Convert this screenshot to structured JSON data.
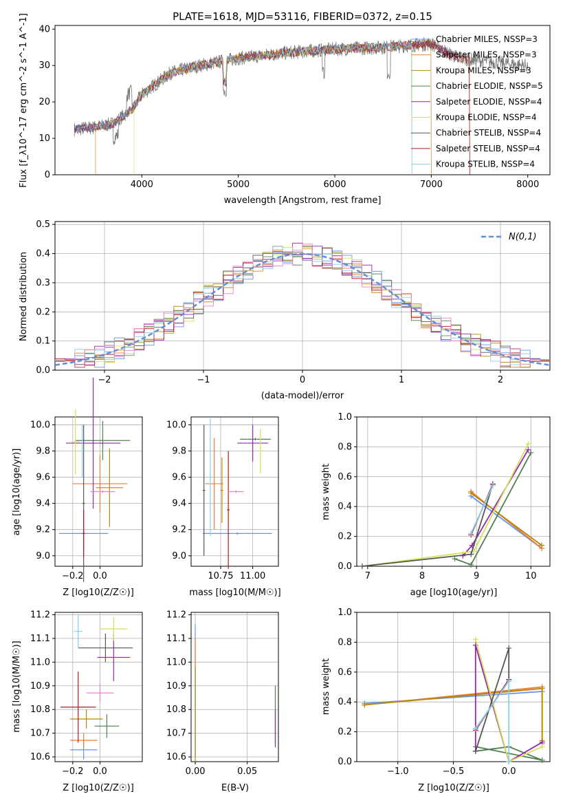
{
  "colors": {
    "series": [
      "#6495ed",
      "#ed7d31",
      "#b8860b",
      "#4f7f4f",
      "#9426b4",
      "#d4e157",
      "#555555",
      "#b2182b",
      "#87ceeb",
      "#ee82c9"
    ],
    "model_gaussian": "#5f8fd8",
    "grid": "#b0b0b0"
  },
  "legend_labels": [
    "Chabrier MILES, N_SSP=3",
    "Salpeter MILES, N_SSP=3",
    "Kroupa MILES, N_SSP=3",
    "Chabrier ELODIE, N_SSP=5",
    "Salpeter ELODIE, N_SSP=4",
    "Kroupa ELODIE, N_SSP=4",
    "Chabrier STELIB, N_SSP=4",
    "Salpeter STELIB, N_SSP=4",
    "Kroupa STELIB, N_SSP=4"
  ],
  "chart_data": [
    {
      "id": "spectrum",
      "type": "line",
      "title": "PLATE=1618, MJD=53116, FIBERID=0372, z=0.15",
      "xlabel": "wavelength [Angstrom, rest frame]",
      "ylabel": "Flux [f_λ10^-17 erg cm^-2 s^-1 A^-1]",
      "xlim": [
        3100,
        8230
      ],
      "ylim": [
        0,
        41
      ],
      "xticks": [
        4000,
        5000,
        6000,
        7000,
        8000
      ],
      "yticks": [
        0,
        10,
        20,
        30,
        40
      ],
      "grid": false,
      "legend": "top-right",
      "continuum_x": [
        3300,
        3500,
        3700,
        3900,
        4000,
        4300,
        4600,
        5000,
        5500,
        6000,
        6500,
        7000,
        7200,
        7300
      ],
      "continuum_y": [
        12.5,
        13,
        14,
        18,
        22,
        28,
        30,
        32,
        33.5,
        34.5,
        35,
        36,
        33,
        32
      ]
    },
    {
      "id": "residuals",
      "type": "step",
      "xlabel": "(data-model)/error",
      "ylabel": "Normed distribution",
      "xlim": [
        -2.5,
        2.5
      ],
      "ylim": [
        0,
        0.51
      ],
      "xticks": [
        -2,
        -1,
        0,
        1,
        2
      ],
      "yticks": [
        0.0,
        0.1,
        0.2,
        0.3,
        0.4,
        0.5
      ],
      "grid": true,
      "legend": "top-right",
      "model_label": "N(0,1)"
    },
    {
      "id": "age-vs-Z",
      "type": "errorbar",
      "xlabel": "Z [log10(Z/Z☉)]",
      "ylabel": "age [log10(age/yr)]",
      "xlim": [
        -0.33,
        0.31
      ],
      "ylim": [
        8.92,
        10.06
      ],
      "xticks": [
        -0.2,
        0.0
      ],
      "yticks": [
        9.0,
        9.2,
        9.4,
        9.6,
        9.8,
        10.0
      ],
      "grid": true,
      "points": [
        {
          "x": -0.12,
          "y": 9.17,
          "xerr": 0.18,
          "yerr": 0.06
        },
        {
          "x": 0.0,
          "y": 9.55,
          "xerr": 0.2,
          "yerr": 0.22
        },
        {
          "x": 0.07,
          "y": 9.52,
          "xerr": 0.1,
          "yerr": 0.3
        },
        {
          "x": 0.02,
          "y": 9.88,
          "xerr": 0.2,
          "yerr": 0.15
        },
        {
          "x": -0.05,
          "y": 9.86,
          "xerr": 0.2,
          "yerr": 0.5
        },
        {
          "x": -0.18,
          "y": 9.87,
          "xerr": 0.03,
          "yerr": 0.25
        },
        {
          "x": -0.12,
          "y": 9.4,
          "xerr": 0.01,
          "yerr": 0.6
        },
        {
          "x": -0.12,
          "y": 9.17,
          "xerr": 0.01,
          "yerr": 0.18
        },
        {
          "x": -0.13,
          "y": 9.8,
          "xerr": 0.01,
          "yerr": 0.2
        },
        {
          "x": 0.02,
          "y": 9.49,
          "xerr": 0.09,
          "yerr": 0.01
        }
      ]
    },
    {
      "id": "age-vs-mass",
      "type": "errorbar",
      "xlabel": "mass [log10(M/M☉)]",
      "ylabel": "",
      "xlim": [
        10.52,
        11.2
      ],
      "ylim": [
        8.92,
        10.06
      ],
      "xticks": [
        10.75,
        11.0
      ],
      "yticks": [
        9.0,
        9.2,
        9.4,
        9.6,
        9.8,
        10.0
      ],
      "grid": true,
      "points": [
        {
          "x": 10.88,
          "y": 9.17,
          "xerr": 0.27,
          "yerr": 0.01
        },
        {
          "x": 10.7,
          "y": 9.55,
          "xerr": 0.07,
          "yerr": 0.35
        },
        {
          "x": 10.76,
          "y": 9.5,
          "xerr": 0.01,
          "yerr": 0.25
        },
        {
          "x": 11.02,
          "y": 9.89,
          "xerr": 0.12,
          "yerr": 0.01
        },
        {
          "x": 11.0,
          "y": 9.86,
          "xerr": 0.12,
          "yerr": 0.14
        },
        {
          "x": 11.06,
          "y": 9.8,
          "xerr": 0.01,
          "yerr": 0.17
        },
        {
          "x": 10.62,
          "y": 9.5,
          "xerr": 0.01,
          "yerr": 0.5
        },
        {
          "x": 10.81,
          "y": 9.35,
          "xerr": 0.01,
          "yerr": 0.45
        },
        {
          "x": 10.67,
          "y": 9.6,
          "xerr": 0.01,
          "yerr": 0.45
        },
        {
          "x": 10.87,
          "y": 9.49,
          "xerr": 0.06,
          "yerr": 0.01
        }
      ]
    },
    {
      "id": "weight-vs-age",
      "type": "line",
      "xlabel": "age [log10(age/yr)]",
      "ylabel": "mass weight",
      "xlim": [
        6.8,
        10.35
      ],
      "ylim": [
        0,
        1.0
      ],
      "xticks": [
        7,
        8,
        9,
        10
      ],
      "yticks": [
        0.0,
        0.2,
        0.4,
        0.6,
        0.8,
        1.0
      ],
      "grid": true,
      "series": [
        {
          "x": [
            8.9,
            10.2
          ],
          "y": [
            0.47,
            0.12
          ]
        },
        {
          "x": [
            8.9,
            10.2
          ],
          "y": [
            0.5,
            0.12
          ]
        },
        {
          "x": [
            8.9,
            10.2
          ],
          "y": [
            0.49,
            0.14
          ]
        },
        {
          "x": [
            8.6,
            8.9,
            10.0
          ],
          "y": [
            0.05,
            0.01,
            0.76
          ]
        },
        {
          "x": [
            8.75,
            8.92,
            9.95
          ],
          "y": [
            0.07,
            0.14,
            0.78
          ]
        },
        {
          "x": [
            6.9,
            8.95,
            9.95
          ],
          "y": [
            0.0,
            0.1,
            0.82
          ]
        },
        {
          "x": [
            6.9,
            8.9,
            9.3
          ],
          "y": [
            0.0,
            0.08,
            0.55
          ]
        },
        {
          "x": [
            8.9,
            9.3
          ],
          "y": [
            0.21,
            0.55
          ]
        },
        {
          "x": [
            8.9,
            9.3
          ],
          "y": [
            0.22,
            0.54
          ]
        }
      ]
    },
    {
      "id": "mass-vs-Z",
      "type": "errorbar",
      "xlabel": "Z [log10(Z/Z☉)]",
      "ylabel": "mass [log10(M/M☉)]",
      "xlim": [
        -0.33,
        0.31
      ],
      "ylim": [
        10.58,
        11.21
      ],
      "xticks": [
        -0.2,
        0.0
      ],
      "yticks": [
        10.6,
        10.7,
        10.8,
        10.9,
        11.0,
        11.1,
        11.2
      ],
      "grid": true,
      "points": [
        {
          "x": -0.12,
          "y": 10.63,
          "xerr": 0.1,
          "yerr": 0.04
        },
        {
          "x": -0.12,
          "y": 10.67,
          "xerr": 0.1,
          "yerr": 0.03
        },
        {
          "x": -0.1,
          "y": 10.76,
          "xerr": 0.12,
          "yerr": 0.04
        },
        {
          "x": 0.05,
          "y": 10.73,
          "xerr": 0.09,
          "yerr": 0.05
        },
        {
          "x": 0.1,
          "y": 11.02,
          "xerr": 0.12,
          "yerr": 0.1
        },
        {
          "x": 0.1,
          "y": 11.14,
          "xerr": 0.1,
          "yerr": 0.05
        },
        {
          "x": 0.04,
          "y": 11.06,
          "xerr": 0.2,
          "yerr": 0.06
        },
        {
          "x": -0.16,
          "y": 10.81,
          "xerr": 0.13,
          "yerr": 0.15
        },
        {
          "x": -0.16,
          "y": 11.13,
          "xerr": 0.03,
          "yerr": 0.07
        },
        {
          "x": 0.0,
          "y": 10.87,
          "xerr": 0.1,
          "yerr": 0.04
        }
      ]
    },
    {
      "id": "mass-vs-EBV",
      "type": "errorbar",
      "xlabel": "E(B-V)",
      "ylabel": "",
      "xlim": [
        -0.004,
        0.08
      ],
      "ylim": [
        10.58,
        11.21
      ],
      "xticks": [
        0.0,
        0.05
      ],
      "yticks": [
        10.6,
        10.7,
        10.8,
        10.9,
        11.0,
        11.1,
        11.2
      ],
      "grid": true,
      "points": [
        {
          "x": 0.0,
          "y": 10.88,
          "xerr": 0.0,
          "yerr": 0.28
        },
        {
          "x": 0.0,
          "y": 10.85,
          "xerr": 0.0,
          "yerr": 0.25
        },
        {
          "x": 0.0,
          "y": 10.78,
          "xerr": 0.0,
          "yerr": 0.2
        },
        {
          "x": 0.077,
          "y": 10.78,
          "xerr": 0.0,
          "yerr": 0.12
        },
        {
          "x": 0.077,
          "y": 10.72,
          "xerr": 0.0,
          "yerr": 0.08
        }
      ]
    },
    {
      "id": "weight-vs-Z",
      "type": "line",
      "xlabel": "Z [log10(Z/Z☉)]",
      "ylabel": "mass weight",
      "xlim": [
        -1.37,
        0.37
      ],
      "ylim": [
        0,
        1.0
      ],
      "xticks": [
        -1.0,
        -0.5,
        0.0
      ],
      "yticks": [
        0.0,
        0.2,
        0.4,
        0.6,
        0.8,
        1.0
      ],
      "grid": true,
      "series": [
        {
          "x": [
            -1.3,
            0.3
          ],
          "y": [
            0.39,
            0.47
          ]
        },
        {
          "x": [
            -1.3,
            0.3,
            0.3
          ],
          "y": [
            0.38,
            0.5,
            0.12
          ]
        },
        {
          "x": [
            -1.3,
            0.3,
            0.3
          ],
          "y": [
            0.38,
            0.49,
            0.14
          ]
        },
        {
          "x": [
            -0.3,
            0.0,
            0.3,
            -0.3
          ],
          "y": [
            0.07,
            0.1,
            0.01,
            0.1
          ]
        },
        {
          "x": [
            -0.3,
            -0.3,
            0.0,
            0.3
          ],
          "y": [
            0.07,
            0.78,
            0.0,
            0.13
          ]
        },
        {
          "x": [
            -0.3,
            0.0,
            0.3
          ],
          "y": [
            0.82,
            0.0,
            0.1
          ]
        },
        {
          "x": [
            -0.3,
            0.0,
            0.0,
            -0.3
          ],
          "y": [
            0.22,
            0.54,
            0.76,
            0.07
          ]
        },
        {
          "x": [
            -0.3,
            0.0
          ],
          "y": [
            0.21,
            0.55
          ]
        },
        {
          "x": [
            -0.3,
            0.0,
            0.0
          ],
          "y": [
            0.22,
            0.54,
            0.0
          ]
        }
      ]
    }
  ]
}
